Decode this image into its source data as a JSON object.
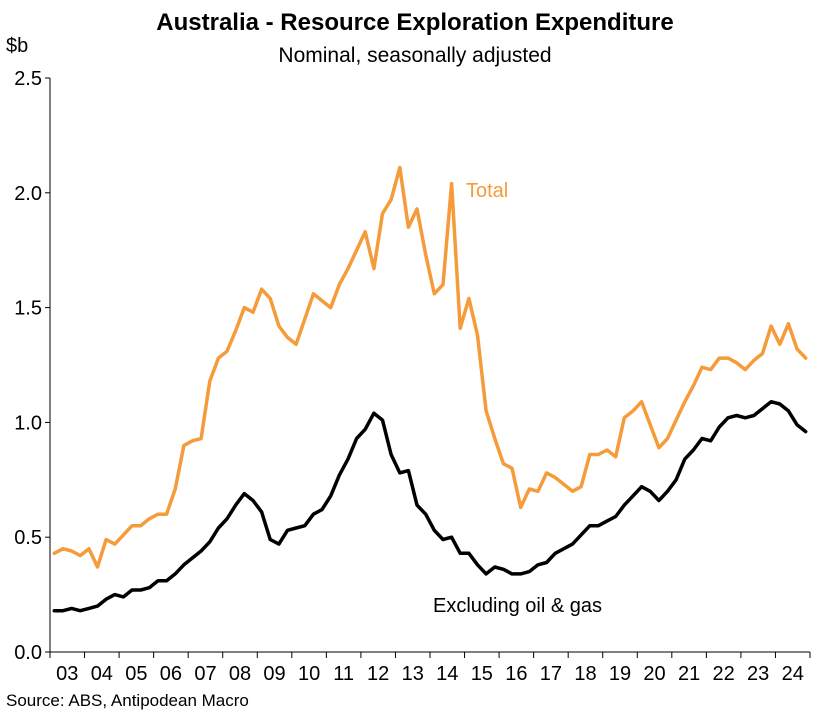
{
  "chart_data": {
    "type": "line",
    "title": "Australia - Resource Exploration Expenditure",
    "subtitle": "Nominal, seasonally adjusted",
    "ylabel": "$b",
    "ylim": [
      0,
      2.5
    ],
    "yticks": [
      "0.0",
      "0.5",
      "1.0",
      "1.5",
      "2.0",
      "2.5"
    ],
    "xticks": [
      "03",
      "04",
      "05",
      "06",
      "07",
      "08",
      "09",
      "10",
      "11",
      "12",
      "13",
      "14",
      "15",
      "16",
      "17",
      "18",
      "19",
      "20",
      "21",
      "22",
      "23",
      "24"
    ],
    "x_start_year": 2003,
    "source": "Source: ABS, Antipodean Macro",
    "grid": false,
    "series": [
      {
        "name": "Total",
        "color": "#F59B3A",
        "values": [
          0.43,
          0.45,
          0.44,
          0.42,
          0.45,
          0.37,
          0.49,
          0.47,
          0.51,
          0.55,
          0.55,
          0.58,
          0.6,
          0.6,
          0.71,
          0.9,
          0.92,
          0.93,
          1.18,
          1.28,
          1.31,
          1.4,
          1.5,
          1.48,
          1.58,
          1.54,
          1.42,
          1.37,
          1.34,
          1.45,
          1.56,
          1.53,
          1.5,
          1.6,
          1.67,
          1.75,
          1.83,
          1.67,
          1.91,
          1.97,
          2.11,
          1.85,
          1.93,
          1.73,
          1.56,
          1.6,
          2.04,
          1.41,
          1.54,
          1.38,
          1.05,
          0.93,
          0.82,
          0.8,
          0.63,
          0.71,
          0.7,
          0.78,
          0.76,
          0.73,
          0.7,
          0.72,
          0.86,
          0.86,
          0.88,
          0.85,
          1.02,
          1.05,
          1.09,
          0.99,
          0.89,
          0.93,
          1.01,
          1.09,
          1.16,
          1.24,
          1.23,
          1.28,
          1.28,
          1.26,
          1.23,
          1.27,
          1.3,
          1.42,
          1.34,
          1.43,
          1.32,
          1.28
        ]
      },
      {
        "name": "Excluding oil & gas",
        "color": "#000000",
        "values": [
          0.18,
          0.18,
          0.19,
          0.18,
          0.19,
          0.2,
          0.23,
          0.25,
          0.24,
          0.27,
          0.27,
          0.28,
          0.31,
          0.31,
          0.34,
          0.38,
          0.41,
          0.44,
          0.48,
          0.54,
          0.58,
          0.64,
          0.69,
          0.66,
          0.61,
          0.49,
          0.47,
          0.53,
          0.54,
          0.55,
          0.6,
          0.62,
          0.68,
          0.77,
          0.84,
          0.93,
          0.97,
          1.04,
          1.01,
          0.86,
          0.78,
          0.79,
          0.64,
          0.6,
          0.53,
          0.49,
          0.5,
          0.43,
          0.43,
          0.38,
          0.34,
          0.37,
          0.36,
          0.34,
          0.34,
          0.35,
          0.38,
          0.39,
          0.43,
          0.45,
          0.47,
          0.51,
          0.55,
          0.55,
          0.57,
          0.59,
          0.64,
          0.68,
          0.72,
          0.7,
          0.66,
          0.7,
          0.75,
          0.84,
          0.88,
          0.93,
          0.92,
          0.98,
          1.02,
          1.03,
          1.02,
          1.03,
          1.06,
          1.09,
          1.08,
          1.05,
          0.99,
          0.96
        ]
      }
    ],
    "annotations": [
      {
        "text": "Total",
        "color": "#F59B3A"
      },
      {
        "text": "Excluding oil & gas",
        "color": "#000000"
      }
    ]
  }
}
